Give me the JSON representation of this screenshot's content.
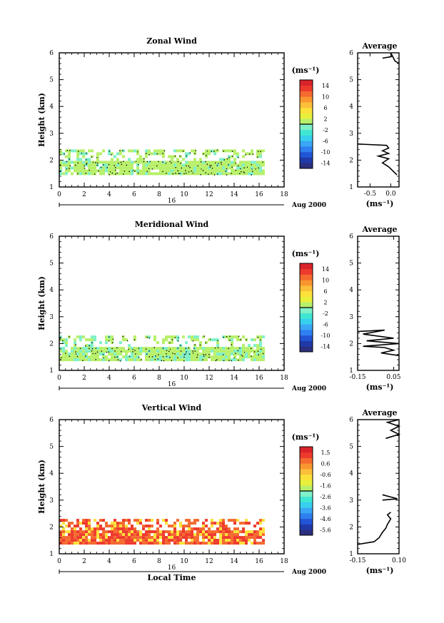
{
  "chart_data": [
    {
      "type": "heatmap",
      "title": "Zonal Wind",
      "ylabel": "Height (km)",
      "xlim": [
        0,
        18
      ],
      "ylim": [
        1,
        6
      ],
      "x_ticks": [
        "0",
        "2",
        "4",
        "6",
        "8",
        "10",
        "12",
        "14",
        "16",
        "18"
      ],
      "y_ticks": [
        "1",
        "2",
        "3",
        "4",
        "5",
        "6"
      ],
      "day_label": "16",
      "month_label": "Aug 2000",
      "cells": {
        "x_start": 0,
        "x_end": 16.4,
        "y_start": 1.45,
        "y_end": 2.4,
        "dominant_value": 0.5,
        "gap_heights": [
          2.15,
          2.2
        ]
      },
      "colorbar": {
        "unit": "(ms⁻¹)",
        "labels": [
          "14",
          "10",
          "6",
          "2",
          "-2",
          "-6",
          "-10",
          "-14"
        ],
        "range": [
          -16,
          16
        ],
        "colors": [
          "#2b2f7e",
          "#1f3aa8",
          "#2255d6",
          "#2f7ff0",
          "#3aa6f5",
          "#37d0ee",
          "#3fe6d3",
          "#7ff0c8",
          "#b8f06a",
          "#e8f03c",
          "#fbe13a",
          "#fbbf3a",
          "#f9962f",
          "#f56a2f",
          "#ee3a2d",
          "#d9232a"
        ]
      },
      "average_profile": {
        "title": "Average",
        "xlabel": "(ms⁻¹)",
        "x_ticks": [
          "-0.5",
          "0.0"
        ],
        "xlim": [
          -0.8,
          0.2
        ],
        "ylim": [
          1,
          6
        ],
        "segments": [
          [
            [
              -0.8,
              2.6
            ],
            [
              -0.1,
              2.55
            ],
            [
              -0.05,
              2.45
            ],
            [
              -0.2,
              2.35
            ],
            [
              -0.05,
              2.25
            ],
            [
              -0.3,
              2.15
            ],
            [
              -0.05,
              2.05
            ],
            [
              -0.2,
              1.9
            ],
            [
              -0.05,
              1.75
            ],
            [
              0.05,
              1.6
            ],
            [
              0.15,
              1.45
            ]
          ],
          [
            [
              -0.2,
              5.8
            ],
            [
              0.0,
              5.85
            ],
            [
              0.05,
              5.9
            ]
          ],
          [
            [
              0.0,
              6.0
            ],
            [
              0.1,
              5.7
            ],
            [
              0.2,
              5.6
            ]
          ]
        ]
      }
    },
    {
      "type": "heatmap",
      "title": "Meridional Wind",
      "ylabel": "Height (km)",
      "xlim": [
        0,
        18
      ],
      "ylim": [
        1,
        6
      ],
      "x_ticks": [
        "0",
        "2",
        "4",
        "6",
        "8",
        "10",
        "12",
        "14",
        "16",
        "18"
      ],
      "y_ticks": [
        "1",
        "2",
        "3",
        "4",
        "5",
        "6"
      ],
      "day_label": "16",
      "month_label": "Aug 2000",
      "cells": {
        "x_start": 0,
        "x_end": 16.4,
        "y_start": 1.4,
        "y_end": 2.3,
        "dominant_value": 0.3,
        "gap_heights": [
          2.05
        ]
      },
      "colorbar": {
        "unit": "(ms⁻¹)",
        "labels": [
          "14",
          "10",
          "6",
          "2",
          "-2",
          "-6",
          "-10",
          "-14"
        ],
        "range": [
          -16,
          16
        ],
        "colors": [
          "#2b2f7e",
          "#1f3aa8",
          "#2255d6",
          "#2f7ff0",
          "#3aa6f5",
          "#37d0ee",
          "#3fe6d3",
          "#7ff0c8",
          "#b8f06a",
          "#e8f03c",
          "#fbe13a",
          "#fbbf3a",
          "#f9962f",
          "#f56a2f",
          "#ee3a2d",
          "#d9232a"
        ]
      },
      "average_profile": {
        "title": "Average",
        "xlabel": "(ms⁻¹)",
        "x_ticks": [
          "-0.15",
          "0.05"
        ],
        "xlim": [
          -0.15,
          0.08
        ],
        "ylim": [
          1,
          6
        ],
        "segments": [
          [
            [
              -0.15,
              2.45
            ],
            [
              0.0,
              2.5
            ],
            [
              -0.12,
              2.35
            ],
            [
              0.05,
              2.2
            ],
            [
              -0.1,
              2.1
            ],
            [
              0.08,
              2.0
            ],
            [
              -0.12,
              1.9
            ],
            [
              0.0,
              1.85
            ],
            [
              0.05,
              1.75
            ],
            [
              -0.02,
              1.65
            ],
            [
              0.08,
              1.55
            ]
          ]
        ]
      }
    },
    {
      "type": "heatmap",
      "title": "Vertical Wind",
      "ylabel": "Height (km)",
      "xlabel": "Local Time",
      "xlim": [
        0,
        18
      ],
      "ylim": [
        1,
        6
      ],
      "x_ticks": [
        "0",
        "2",
        "4",
        "6",
        "8",
        "10",
        "12",
        "14",
        "16",
        "18"
      ],
      "y_ticks": [
        "1",
        "2",
        "3",
        "4",
        "5",
        "6"
      ],
      "day_label": "16",
      "month_label": "Aug 2000",
      "cells": {
        "x_start": 0,
        "x_end": 16.4,
        "y_start": 1.35,
        "y_end": 2.3,
        "dominant_value": 0.5,
        "gap_heights": []
      },
      "colorbar": {
        "unit": "(ms⁻¹)",
        "labels": [
          "1.5",
          "0.6",
          "-0.6",
          "-1.6",
          "-2.6",
          "-3.6",
          "-4.6",
          "-5.6"
        ],
        "range": [
          -6.0,
          2.0
        ],
        "colors": [
          "#2b2f7e",
          "#1f3aa8",
          "#2255d6",
          "#2f7ff0",
          "#3aa6f5",
          "#37d0ee",
          "#3fe6d3",
          "#7ff0c8",
          "#b8f06a",
          "#e8f03c",
          "#fbe13a",
          "#fbbf3a",
          "#f9962f",
          "#f56a2f",
          "#ee3a2d",
          "#d9232a"
        ]
      },
      "average_profile": {
        "title": "Average",
        "xlabel": "(ms⁻¹)",
        "x_ticks": [
          "-0.15",
          "0.10"
        ],
        "xlim": [
          -0.15,
          0.1
        ],
        "ylim": [
          1,
          6
        ],
        "segments": [
          [
            [
              -0.15,
              1.35
            ],
            [
              -0.05,
              1.45
            ],
            [
              -0.02,
              1.6
            ],
            [
              0.0,
              1.8
            ],
            [
              0.02,
              1.95
            ],
            [
              0.03,
              2.1
            ],
            [
              0.05,
              2.3
            ],
            [
              0.03,
              2.45
            ],
            [
              0.05,
              2.55
            ]
          ],
          [
            [
              0.0,
              3.2
            ],
            [
              0.09,
              3.05
            ],
            [
              0.0,
              3.0
            ]
          ],
          [
            [
              0.02,
              5.3
            ],
            [
              0.1,
              5.45
            ],
            [
              0.05,
              5.6
            ],
            [
              0.1,
              5.75
            ],
            [
              0.03,
              5.9
            ],
            [
              0.1,
              6.0
            ]
          ]
        ]
      }
    }
  ]
}
